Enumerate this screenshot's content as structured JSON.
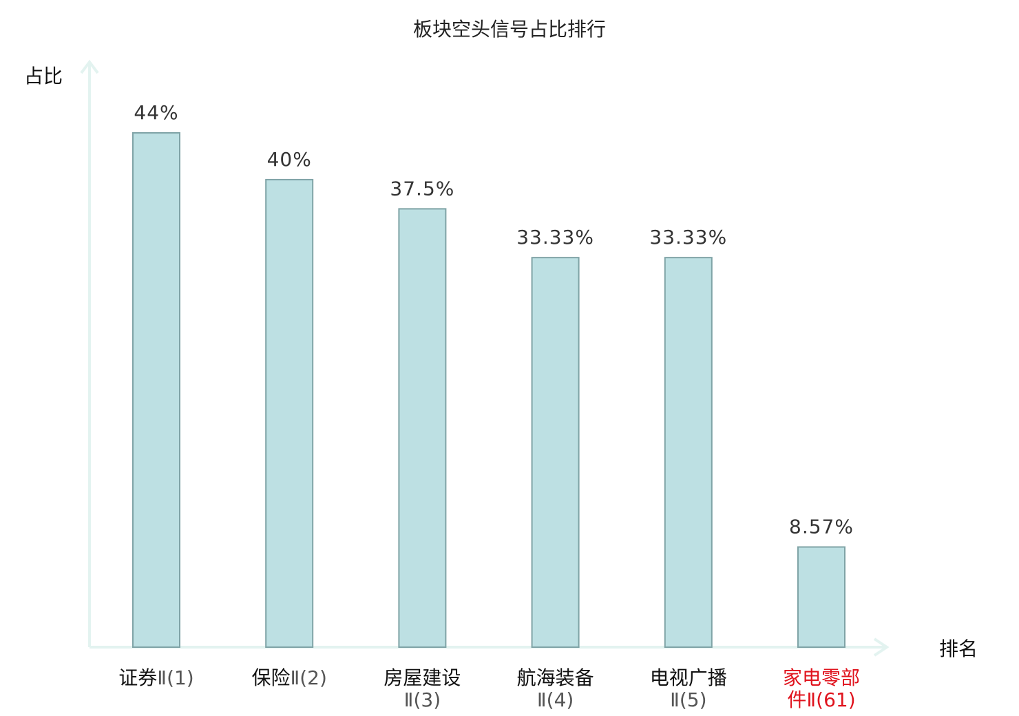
{
  "chart_data": {
    "type": "bar",
    "title": "板块空头信号占比排行",
    "xlabel": "排名",
    "ylabel": "占比",
    "categories": [
      {
        "name": "证券",
        "suffix": "Ⅱ(1)",
        "highlight": false
      },
      {
        "name": "保险",
        "suffix": "Ⅱ(2)",
        "highlight": false
      },
      {
        "name": "房屋建设",
        "suffix": "Ⅱ(3)",
        "highlight": false
      },
      {
        "name": "航海装备",
        "suffix": "Ⅱ(4)",
        "highlight": false
      },
      {
        "name": "电视广播",
        "suffix": "Ⅱ(5)",
        "highlight": false
      },
      {
        "name": "家电零部",
        "name2": "件",
        "suffix": "Ⅱ(61)",
        "highlight": true
      }
    ],
    "values": [
      44,
      40,
      37.5,
      33.33,
      33.33,
      8.57
    ],
    "value_labels": [
      "44%",
      "40%",
      "37.5%",
      "33.33%",
      "33.33%",
      "8.57%"
    ],
    "ylim": [
      0,
      50
    ],
    "grid": false,
    "legend": "none",
    "colors": {
      "bar_fill": "#bde0e3",
      "bar_stroke": "#7fa3a6",
      "axis": "#e3f3f0",
      "highlight_text": "#e0141e",
      "text": "#111111"
    }
  }
}
